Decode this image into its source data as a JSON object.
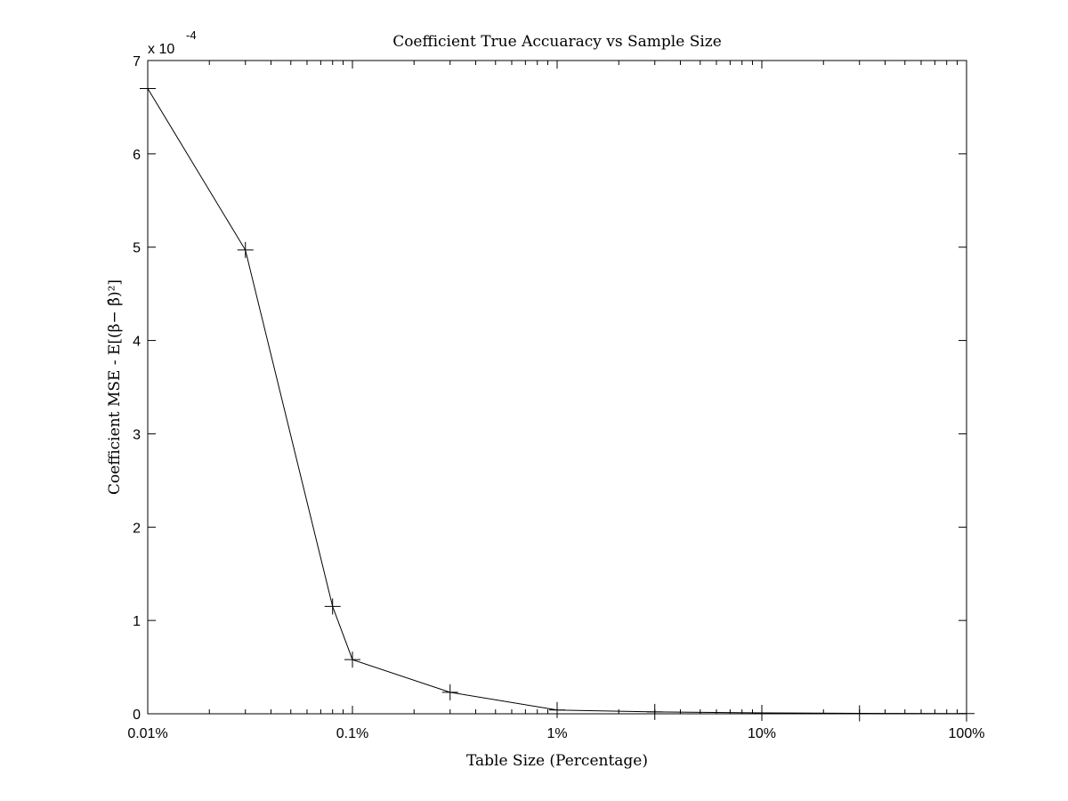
{
  "chart_data": {
    "type": "line",
    "title": "Coefficient True Accuaracy vs Sample Size",
    "xlabel": "Table Size (Percentage)",
    "ylabel": "Coefficient MSE - E[(β− β̂)²]",
    "x_scale": "log",
    "xlim": [
      0.01,
      100
    ],
    "ylim": [
      0,
      0.0007
    ],
    "y_exponent_label": "x 10",
    "y_exponent_power": "-4",
    "x_ticks": [
      {
        "value": 0.01,
        "label": "0.01%"
      },
      {
        "value": 0.1,
        "label": "0.1%"
      },
      {
        "value": 1,
        "label": "1%"
      },
      {
        "value": 10,
        "label": "10%"
      },
      {
        "value": 100,
        "label": "100%"
      }
    ],
    "y_ticks": [
      {
        "value": 0,
        "label": "0"
      },
      {
        "value": 0.0001,
        "label": "1"
      },
      {
        "value": 0.0002,
        "label": "2"
      },
      {
        "value": 0.0003,
        "label": "3"
      },
      {
        "value": 0.0004,
        "label": "4"
      },
      {
        "value": 0.0005,
        "label": "5"
      },
      {
        "value": 0.0006,
        "label": "6"
      },
      {
        "value": 0.0007,
        "label": "7"
      }
    ],
    "grid": false,
    "marker": "+",
    "series": [
      {
        "x": [
          0.01,
          0.03,
          0.08,
          0.1,
          0.3,
          1,
          3,
          10,
          30,
          100
        ],
        "y": [
          0.00067,
          0.000497,
          0.000115,
          5.8e-05,
          2.3e-05,
          4e-06,
          2e-06,
          1e-06,
          5e-07,
          2e-07
        ]
      }
    ]
  }
}
